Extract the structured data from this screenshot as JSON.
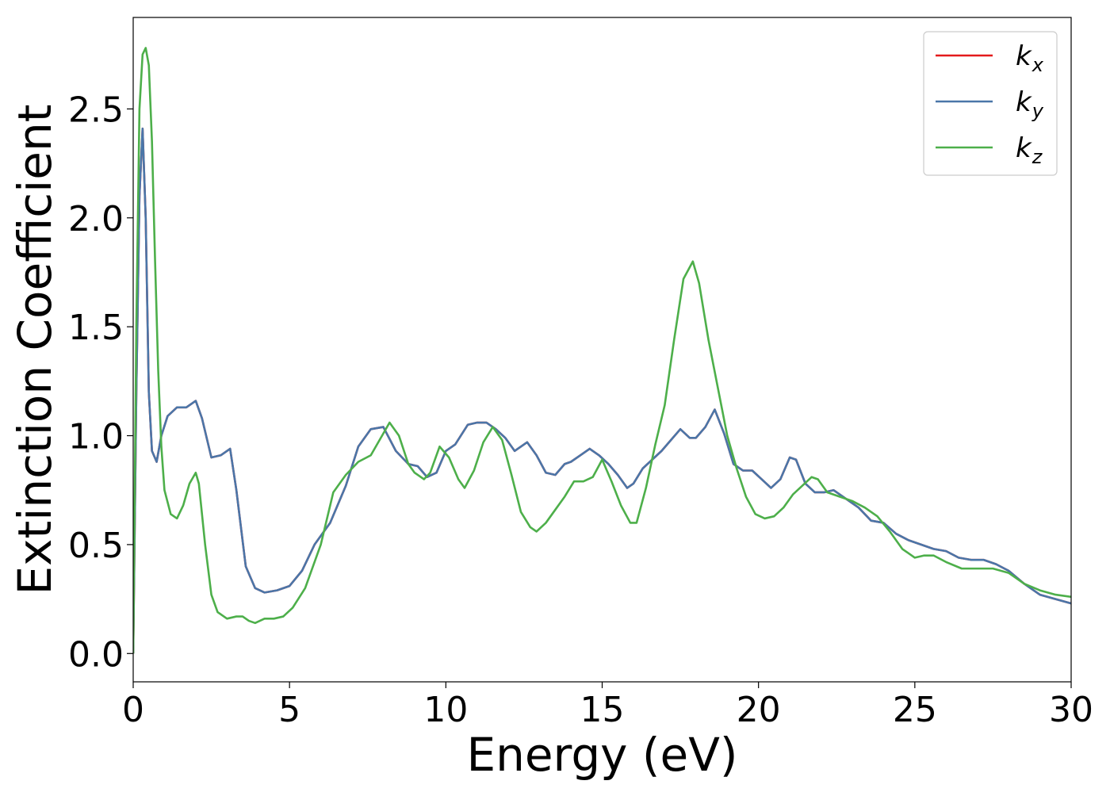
{
  "chart_data": {
    "type": "line",
    "title": "",
    "xlabel": "Energy (eV)",
    "ylabel": "Extinction Coefficient",
    "xlim": [
      0,
      30
    ],
    "ylim": [
      -0.13,
      2.92
    ],
    "xticks": [
      0,
      5,
      10,
      15,
      20,
      25,
      30
    ],
    "xtick_labels": [
      "0",
      "5",
      "10",
      "15",
      "20",
      "25",
      "30"
    ],
    "yticks": [
      0.0,
      0.5,
      1.0,
      1.5,
      2.0,
      2.5
    ],
    "ytick_labels": [
      "0.0",
      "0.5",
      "1.0",
      "1.5",
      "2.0",
      "2.5"
    ],
    "grid": false,
    "legend_position": "top-right",
    "series": [
      {
        "name": "k_x",
        "label_main": "k",
        "label_sub": "x",
        "color": "#e41a1c",
        "x": [
          0.0,
          0.1,
          0.2,
          0.3,
          0.4,
          0.5,
          0.6,
          0.75,
          0.9,
          1.1,
          1.4,
          1.7,
          2.0,
          2.2,
          2.5,
          2.8,
          3.1,
          3.3,
          3.6,
          3.9,
          4.2,
          4.6,
          5.0,
          5.4,
          5.8,
          6.3,
          6.8,
          7.2,
          7.6,
          8.0,
          8.4,
          8.8,
          9.1,
          9.4,
          9.7,
          10.0,
          10.3,
          10.7,
          11.0,
          11.3,
          11.6,
          11.9,
          12.2,
          12.6,
          12.9,
          13.2,
          13.5,
          13.8,
          14.0,
          14.3,
          14.6,
          14.9,
          15.2,
          15.5,
          15.8,
          16.0,
          16.3,
          16.6,
          16.9,
          17.2,
          17.5,
          17.8,
          18.0,
          18.3,
          18.6,
          18.9,
          19.2,
          19.5,
          19.8,
          20.1,
          20.4,
          20.7,
          21.0,
          21.2,
          21.5,
          21.8,
          22.1,
          22.4,
          22.8,
          23.2,
          23.6,
          24.0,
          24.4,
          24.8,
          25.2,
          25.6,
          26.0,
          26.4,
          26.8,
          27.2,
          27.6,
          28.0,
          28.5,
          29.0,
          29.5,
          30.0
        ],
        "values": [
          0.0,
          1.2,
          2.1,
          2.41,
          2.0,
          1.2,
          0.93,
          0.88,
          1.0,
          1.09,
          1.13,
          1.13,
          1.16,
          1.08,
          0.9,
          0.91,
          0.94,
          0.75,
          0.4,
          0.3,
          0.28,
          0.29,
          0.31,
          0.38,
          0.5,
          0.6,
          0.77,
          0.95,
          1.03,
          1.04,
          0.93,
          0.87,
          0.86,
          0.81,
          0.83,
          0.93,
          0.96,
          1.05,
          1.06,
          1.06,
          1.03,
          0.99,
          0.93,
          0.97,
          0.91,
          0.83,
          0.82,
          0.87,
          0.88,
          0.91,
          0.94,
          0.91,
          0.87,
          0.82,
          0.76,
          0.78,
          0.85,
          0.89,
          0.93,
          0.98,
          1.03,
          0.99,
          0.99,
          1.04,
          1.12,
          1.01,
          0.87,
          0.84,
          0.84,
          0.8,
          0.76,
          0.8,
          0.9,
          0.89,
          0.78,
          0.74,
          0.74,
          0.75,
          0.71,
          0.67,
          0.61,
          0.6,
          0.55,
          0.52,
          0.5,
          0.48,
          0.47,
          0.44,
          0.43,
          0.43,
          0.41,
          0.38,
          0.32,
          0.27,
          0.25,
          0.23
        ]
      },
      {
        "name": "k_y",
        "label_main": "k",
        "label_sub": "y",
        "color": "#4a76a8",
        "x": [
          0.0,
          0.1,
          0.2,
          0.3,
          0.4,
          0.5,
          0.6,
          0.75,
          0.9,
          1.1,
          1.4,
          1.7,
          2.0,
          2.2,
          2.5,
          2.8,
          3.1,
          3.3,
          3.6,
          3.9,
          4.2,
          4.6,
          5.0,
          5.4,
          5.8,
          6.3,
          6.8,
          7.2,
          7.6,
          8.0,
          8.4,
          8.8,
          9.1,
          9.4,
          9.7,
          10.0,
          10.3,
          10.7,
          11.0,
          11.3,
          11.6,
          11.9,
          12.2,
          12.6,
          12.9,
          13.2,
          13.5,
          13.8,
          14.0,
          14.3,
          14.6,
          14.9,
          15.2,
          15.5,
          15.8,
          16.0,
          16.3,
          16.6,
          16.9,
          17.2,
          17.5,
          17.8,
          18.0,
          18.3,
          18.6,
          18.9,
          19.2,
          19.5,
          19.8,
          20.1,
          20.4,
          20.7,
          21.0,
          21.2,
          21.5,
          21.8,
          22.1,
          22.4,
          22.8,
          23.2,
          23.6,
          24.0,
          24.4,
          24.8,
          25.2,
          25.6,
          26.0,
          26.4,
          26.8,
          27.2,
          27.6,
          28.0,
          28.5,
          29.0,
          29.5,
          30.0
        ],
        "values": [
          0.0,
          1.2,
          2.1,
          2.41,
          2.0,
          1.2,
          0.93,
          0.88,
          1.0,
          1.09,
          1.13,
          1.13,
          1.16,
          1.08,
          0.9,
          0.91,
          0.94,
          0.75,
          0.4,
          0.3,
          0.28,
          0.29,
          0.31,
          0.38,
          0.5,
          0.6,
          0.77,
          0.95,
          1.03,
          1.04,
          0.93,
          0.87,
          0.86,
          0.81,
          0.83,
          0.93,
          0.96,
          1.05,
          1.06,
          1.06,
          1.03,
          0.99,
          0.93,
          0.97,
          0.91,
          0.83,
          0.82,
          0.87,
          0.88,
          0.91,
          0.94,
          0.91,
          0.87,
          0.82,
          0.76,
          0.78,
          0.85,
          0.89,
          0.93,
          0.98,
          1.03,
          0.99,
          0.99,
          1.04,
          1.12,
          1.01,
          0.87,
          0.84,
          0.84,
          0.8,
          0.76,
          0.8,
          0.9,
          0.89,
          0.78,
          0.74,
          0.74,
          0.75,
          0.71,
          0.67,
          0.61,
          0.6,
          0.55,
          0.52,
          0.5,
          0.48,
          0.47,
          0.44,
          0.43,
          0.43,
          0.41,
          0.38,
          0.32,
          0.27,
          0.25,
          0.23
        ]
      },
      {
        "name": "k_z",
        "label_main": "k",
        "label_sub": "z",
        "color": "#4daf4a",
        "x": [
          0.0,
          0.1,
          0.2,
          0.3,
          0.4,
          0.5,
          0.6,
          0.7,
          0.8,
          0.9,
          1.0,
          1.2,
          1.4,
          1.6,
          1.8,
          2.0,
          2.1,
          2.3,
          2.5,
          2.7,
          3.0,
          3.3,
          3.5,
          3.7,
          3.9,
          4.2,
          4.5,
          4.8,
          5.1,
          5.5,
          6.0,
          6.4,
          6.8,
          7.2,
          7.6,
          8.0,
          8.2,
          8.5,
          8.8,
          9.0,
          9.3,
          9.5,
          9.8,
          10.1,
          10.4,
          10.6,
          10.9,
          11.2,
          11.5,
          11.8,
          12.1,
          12.4,
          12.7,
          12.9,
          13.2,
          13.5,
          13.8,
          14.1,
          14.4,
          14.7,
          15.0,
          15.3,
          15.6,
          15.9,
          16.1,
          16.4,
          16.7,
          17.0,
          17.3,
          17.6,
          17.9,
          18.1,
          18.4,
          18.7,
          19.0,
          19.3,
          19.6,
          19.9,
          20.2,
          20.5,
          20.8,
          21.1,
          21.4,
          21.7,
          21.9,
          22.2,
          22.6,
          23.0,
          23.4,
          23.8,
          24.2,
          24.6,
          25.0,
          25.3,
          25.6,
          26.0,
          26.5,
          27.0,
          27.5,
          28.0,
          28.5,
          29.0,
          29.5,
          30.0
        ],
        "values": [
          0.0,
          1.5,
          2.5,
          2.75,
          2.78,
          2.7,
          2.35,
          1.8,
          1.3,
          0.95,
          0.75,
          0.64,
          0.62,
          0.68,
          0.78,
          0.83,
          0.78,
          0.5,
          0.27,
          0.19,
          0.16,
          0.17,
          0.17,
          0.15,
          0.14,
          0.16,
          0.16,
          0.17,
          0.21,
          0.3,
          0.5,
          0.74,
          0.82,
          0.88,
          0.91,
          1.01,
          1.06,
          1.0,
          0.87,
          0.83,
          0.8,
          0.83,
          0.95,
          0.9,
          0.8,
          0.76,
          0.84,
          0.97,
          1.04,
          0.98,
          0.82,
          0.65,
          0.58,
          0.56,
          0.6,
          0.66,
          0.72,
          0.79,
          0.79,
          0.81,
          0.89,
          0.79,
          0.68,
          0.6,
          0.6,
          0.76,
          0.96,
          1.14,
          1.44,
          1.72,
          1.8,
          1.7,
          1.44,
          1.22,
          1.0,
          0.85,
          0.72,
          0.64,
          0.62,
          0.63,
          0.67,
          0.73,
          0.77,
          0.81,
          0.8,
          0.74,
          0.72,
          0.7,
          0.67,
          0.63,
          0.56,
          0.48,
          0.44,
          0.45,
          0.45,
          0.42,
          0.39,
          0.39,
          0.39,
          0.37,
          0.32,
          0.29,
          0.27,
          0.26
        ]
      }
    ]
  }
}
